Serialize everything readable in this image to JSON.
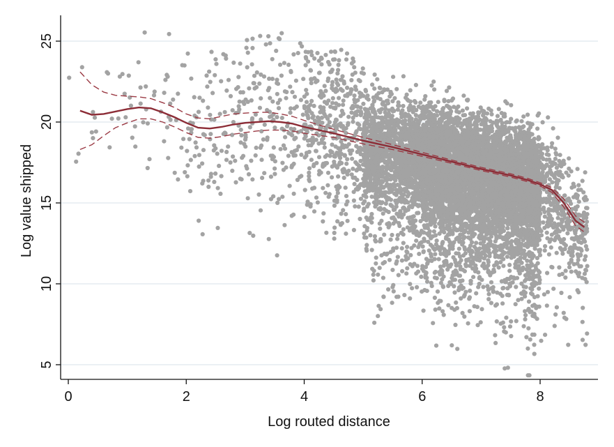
{
  "chart_data": {
    "type": "scatter",
    "title": "",
    "xlabel": "Log routed distance",
    "ylabel": "Log value shipped",
    "xlim": [
      0,
      8.8
    ],
    "ylim": [
      4.2,
      26.2
    ],
    "x_ticks": [
      0,
      2,
      4,
      6,
      8
    ],
    "y_ticks": [
      5,
      10,
      15,
      20,
      25
    ],
    "grid": "horizontal",
    "legend": "none",
    "colors": {
      "points": "#a3a3a3",
      "fit_line": "#8c2c36",
      "ci_band": "#9b3a44",
      "grid": "#dfe8ee",
      "axis": "#111111"
    },
    "scatter_density": [
      {
        "x_range": [
          0.0,
          1.0
        ],
        "y_range": [
          13.5,
          23.5
        ],
        "points": 18
      },
      {
        "x_range": [
          1.0,
          2.0
        ],
        "y_range": [
          16.0,
          26.0
        ],
        "points": 40
      },
      {
        "x_range": [
          2.0,
          3.0
        ],
        "y_range": [
          8.5,
          24.5
        ],
        "points": 110
      },
      {
        "x_range": [
          3.0,
          4.0
        ],
        "y_range": [
          9.5,
          25.5
        ],
        "points": 170
      },
      {
        "x_range": [
          4.0,
          5.0
        ],
        "y_range": [
          5.5,
          24.5
        ],
        "points": 430
      },
      {
        "x_range": [
          5.0,
          6.0
        ],
        "y_range": [
          4.5,
          23.0
        ],
        "points": 1500
      },
      {
        "x_range": [
          6.0,
          7.0
        ],
        "y_range": [
          4.8,
          23.2
        ],
        "points": 3000
      },
      {
        "x_range": [
          7.0,
          8.0
        ],
        "y_range": [
          4.3,
          22.8
        ],
        "points": 3200
      },
      {
        "x_range": [
          8.0,
          8.8
        ],
        "y_range": [
          6.0,
          21.0
        ],
        "points": 420
      }
    ],
    "series": [
      {
        "x": [
          0.2,
          0.4,
          0.6,
          0.8,
          1.0,
          1.2,
          1.4,
          1.6,
          1.8,
          2.0,
          2.2,
          2.4,
          2.6,
          2.8,
          3.0,
          3.2,
          3.4,
          3.6,
          3.8,
          4.0,
          4.5,
          5.0,
          5.5,
          6.0,
          6.5,
          7.0,
          7.5,
          7.8,
          8.0,
          8.2,
          8.4,
          8.6,
          8.75
        ],
        "y": [
          20.7,
          20.45,
          20.5,
          20.65,
          20.8,
          20.9,
          20.85,
          20.6,
          20.3,
          19.95,
          19.65,
          19.6,
          19.7,
          19.85,
          19.95,
          20.0,
          20.05,
          20.0,
          19.9,
          19.7,
          19.3,
          18.85,
          18.45,
          18.0,
          17.55,
          17.1,
          16.7,
          16.4,
          16.15,
          15.8,
          15.0,
          13.9,
          13.5
        ],
        "upper": [
          23.1,
          22.3,
          21.85,
          21.65,
          21.6,
          21.55,
          21.45,
          21.2,
          20.9,
          20.5,
          20.25,
          20.2,
          20.35,
          20.5,
          20.55,
          20.6,
          20.6,
          20.5,
          20.35,
          20.1,
          19.55,
          19.05,
          18.6,
          18.12,
          17.65,
          17.2,
          16.8,
          16.5,
          16.25,
          15.95,
          15.25,
          14.2,
          13.8
        ],
        "lower": [
          18.3,
          18.6,
          19.15,
          19.65,
          19.95,
          20.2,
          20.2,
          20.0,
          19.7,
          19.35,
          19.05,
          19.0,
          19.1,
          19.25,
          19.35,
          19.45,
          19.5,
          19.5,
          19.45,
          19.3,
          19.05,
          18.65,
          18.3,
          17.88,
          17.45,
          17.0,
          16.6,
          16.3,
          16.05,
          15.65,
          14.75,
          13.6,
          13.2
        ]
      }
    ]
  }
}
